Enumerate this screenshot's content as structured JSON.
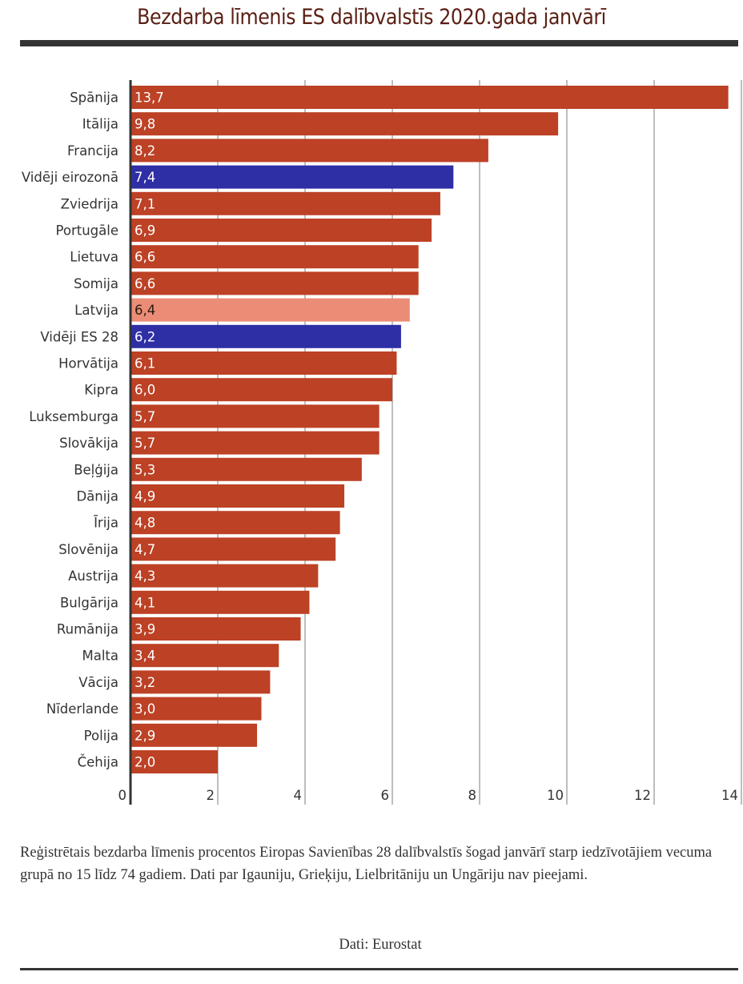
{
  "header": {
    "title": "Bezdarba līmenis ES dalībvalstīs 2020.gada janvārī"
  },
  "colors": {
    "default_bar": "#bd4125",
    "average_bar": "#2e2fa5",
    "highlight_bar": "#eb8c76",
    "default_label": "#ffffff",
    "highlight_label": "#2a1a14",
    "gridline": "#a8a8a8",
    "axis": "#333333"
  },
  "chart_data": {
    "type": "bar",
    "orientation": "horizontal",
    "title": "Bezdarba līmenis ES dalībvalstīs 2020.gada janvārī",
    "xlabel": "",
    "ylabel": "",
    "xlim": [
      0,
      14
    ],
    "grid": true,
    "x_ticks": [
      0,
      2,
      4,
      6,
      8,
      10,
      12,
      14
    ],
    "x_tick_labels": [
      "0",
      "2",
      "4",
      "6",
      "8",
      "10",
      "12",
      "14"
    ],
    "categories": [
      "Spānija",
      "Itālija",
      "Francija",
      "Vidēji eirozonā",
      "Zviedrija",
      "Portugāle",
      "Lietuva",
      "Somija",
      "Latvija",
      "Vidēji ES 28",
      "Horvātija",
      "Kipra",
      "Luksemburga",
      "Slovākija",
      "Beļģija",
      "Dānija",
      "Īrija",
      "Slovēnija",
      "Austrija",
      "Bulgārija",
      "Rumānija",
      "Malta",
      "Vācija",
      "Nīderlande",
      "Polija",
      "Čehija"
    ],
    "values": [
      13.7,
      9.8,
      8.2,
      7.4,
      7.1,
      6.9,
      6.6,
      6.6,
      6.4,
      6.2,
      6.1,
      6.0,
      5.7,
      5.7,
      5.3,
      4.9,
      4.8,
      4.7,
      4.3,
      4.1,
      3.9,
      3.4,
      3.2,
      3.0,
      2.9,
      2.0
    ],
    "value_labels": [
      "13,7",
      "9,8",
      "8,2",
      "7,4",
      "7,1",
      "6,9",
      "6,6",
      "6,6",
      "6,4",
      "6,2",
      "6,1",
      "6,0",
      "5,7",
      "5,7",
      "5,3",
      "4,9",
      "4,8",
      "4,7",
      "4,3",
      "4,1",
      "3,9",
      "3,4",
      "3,2",
      "3,0",
      "2,9",
      "2,0"
    ],
    "bar_kinds": [
      "default",
      "default",
      "default",
      "average",
      "default",
      "default",
      "default",
      "default",
      "highlight",
      "average",
      "default",
      "default",
      "default",
      "default",
      "default",
      "default",
      "default",
      "default",
      "default",
      "default",
      "default",
      "default",
      "default",
      "default",
      "default",
      "default"
    ],
    "unit": "%"
  },
  "footer": {
    "note": "Reģistrētais bezdarba līmenis procentos Eiropas Savienības 28 dalībvalstīs šogad janvārī starp iedzīvotājiem vecuma grupā no 15 līdz 74 gadiem. Dati par Igauniju, Grieķiju, Lielbritāniju un Ungāriju nav pieejami.",
    "source": "Dati: Eurostat"
  }
}
